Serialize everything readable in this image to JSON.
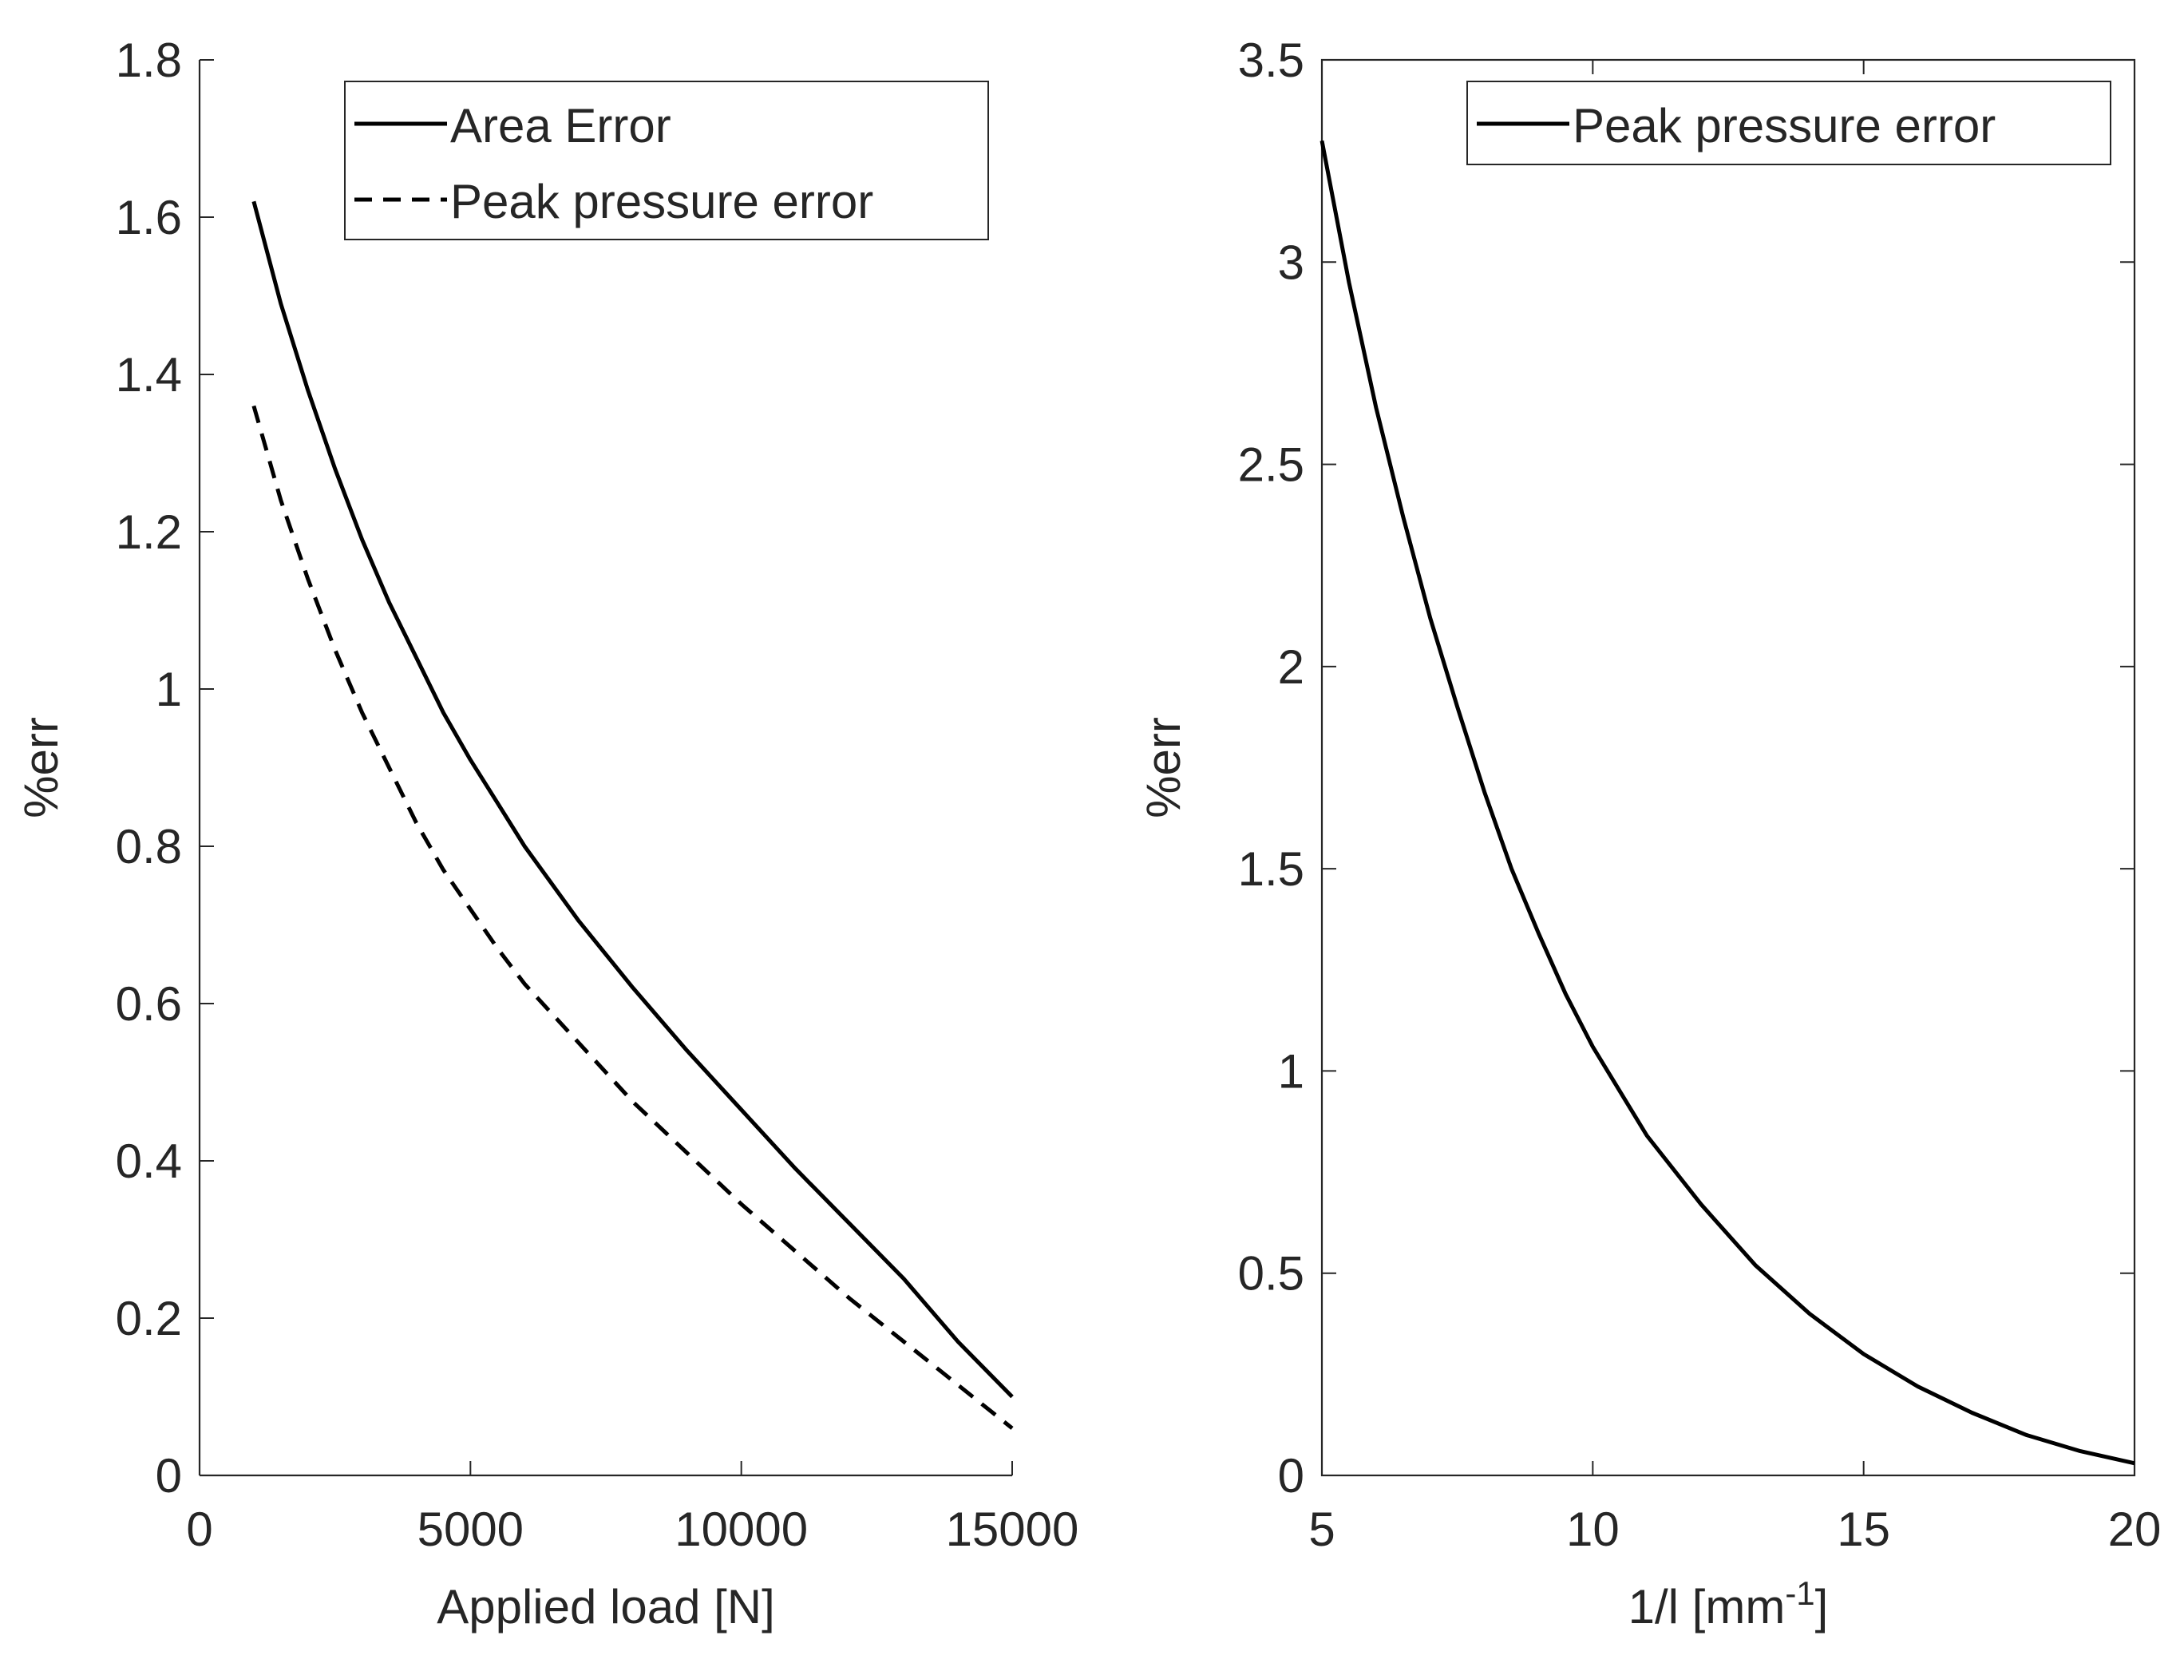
{
  "chart_data": [
    {
      "type": "line",
      "title": "",
      "xlabel": "Applied load [N]",
      "ylabel": "%err",
      "xlim": [
        0,
        15000
      ],
      "ylim": [
        0,
        1.8
      ],
      "xticks": [
        0,
        5000,
        10000,
        15000
      ],
      "xtick_labels": [
        "0",
        "5000",
        "10000",
        "15000"
      ],
      "yticks": [
        0,
        0.2,
        0.4,
        0.6,
        0.8,
        1,
        1.2,
        1.4,
        1.6,
        1.8
      ],
      "ytick_labels": [
        "0",
        "0.2",
        "0.4",
        "0.6",
        "0.8",
        "1",
        "1.2",
        "1.4",
        "1.6",
        "1.8"
      ],
      "grid": false,
      "legend_position": "top-right",
      "series": [
        {
          "name": "Area Error",
          "style": "solid",
          "color": "#000000",
          "x": [
            1000,
            1500,
            2000,
            2500,
            3000,
            3500,
            4000,
            4500,
            5000,
            5500,
            6000,
            7000,
            8000,
            9000,
            10000,
            11000,
            12000,
            13000,
            14000,
            15000
          ],
          "y": [
            1.62,
            1.49,
            1.38,
            1.28,
            1.19,
            1.11,
            1.04,
            0.97,
            0.91,
            0.855,
            0.8,
            0.705,
            0.62,
            0.54,
            0.465,
            0.39,
            0.32,
            0.25,
            0.17,
            0.1
          ]
        },
        {
          "name": "Peak pressure error",
          "style": "dashed",
          "color": "#000000",
          "x": [
            1000,
            1500,
            2000,
            2500,
            3000,
            3500,
            4000,
            4500,
            5000,
            5500,
            6000,
            7000,
            8000,
            9000,
            10000,
            11000,
            12000,
            13000,
            14000,
            15000
          ],
          "y": [
            1.36,
            1.24,
            1.14,
            1.05,
            0.97,
            0.9,
            0.83,
            0.77,
            0.72,
            0.67,
            0.625,
            0.55,
            0.475,
            0.41,
            0.345,
            0.285,
            0.225,
            0.17,
            0.115,
            0.06
          ]
        }
      ]
    },
    {
      "type": "line",
      "title": "",
      "xlabel": "1/l [mm",
      "xlabel_superscript": "-1",
      "xlabel_suffix": "]",
      "ylabel": "%err",
      "xlim": [
        5,
        20
      ],
      "ylim": [
        0,
        3.5
      ],
      "xticks": [
        5,
        10,
        15,
        20
      ],
      "xtick_labels": [
        "5",
        "10",
        "15",
        "20"
      ],
      "yticks": [
        0,
        0.5,
        1,
        1.5,
        2,
        2.5,
        3,
        3.5
      ],
      "ytick_labels": [
        "0",
        "0.5",
        "1",
        "1.5",
        "2",
        "2.5",
        "3",
        "3.5"
      ],
      "grid": false,
      "legend_position": "top-right",
      "series": [
        {
          "name": "Peak pressure error",
          "style": "solid",
          "color": "#000000",
          "x": [
            5,
            5.5,
            6,
            6.5,
            7,
            7.5,
            8,
            8.5,
            9,
            9.5,
            10,
            11,
            12,
            13,
            14,
            15,
            16,
            17,
            18,
            19,
            20
          ],
          "y": [
            3.3,
            2.95,
            2.64,
            2.37,
            2.12,
            1.9,
            1.69,
            1.5,
            1.34,
            1.19,
            1.06,
            0.84,
            0.67,
            0.52,
            0.4,
            0.3,
            0.22,
            0.155,
            0.1,
            0.06,
            0.03
          ]
        }
      ]
    }
  ]
}
